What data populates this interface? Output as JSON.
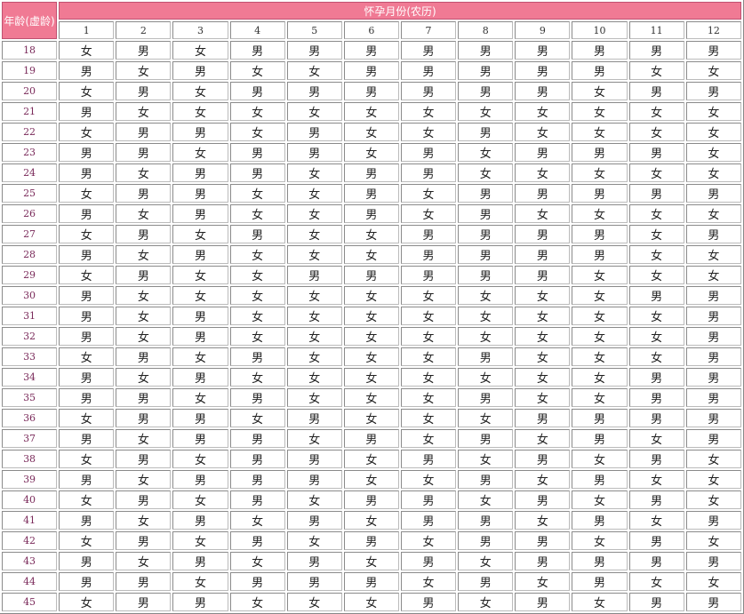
{
  "header": {
    "age_label": "年龄(虚龄)",
    "month_label": "怀孕月份(农历)",
    "months": [
      "1",
      "2",
      "3",
      "4",
      "5",
      "6",
      "7",
      "8",
      "9",
      "10",
      "11",
      "12"
    ]
  },
  "colors": {
    "header_bg": "#f07a94",
    "age_text": "#7a2a5a"
  },
  "rows": [
    {
      "age": "18",
      "cells": [
        "女",
        "男",
        "女",
        "男",
        "男",
        "男",
        "男",
        "男",
        "男",
        "男",
        "男",
        "男"
      ]
    },
    {
      "age": "19",
      "cells": [
        "男",
        "女",
        "男",
        "女",
        "女",
        "男",
        "男",
        "男",
        "男",
        "男",
        "女",
        "女"
      ]
    },
    {
      "age": "20",
      "cells": [
        "女",
        "男",
        "女",
        "男",
        "男",
        "男",
        "男",
        "男",
        "男",
        "女",
        "男",
        "男"
      ]
    },
    {
      "age": "21",
      "cells": [
        "男",
        "女",
        "女",
        "女",
        "女",
        "女",
        "女",
        "女",
        "女",
        "女",
        "女",
        "女"
      ]
    },
    {
      "age": "22",
      "cells": [
        "女",
        "男",
        "男",
        "女",
        "男",
        "女",
        "女",
        "男",
        "女",
        "女",
        "女",
        "女"
      ]
    },
    {
      "age": "23",
      "cells": [
        "男",
        "男",
        "女",
        "男",
        "男",
        "女",
        "男",
        "女",
        "男",
        "男",
        "男",
        "女"
      ]
    },
    {
      "age": "24",
      "cells": [
        "男",
        "女",
        "男",
        "男",
        "女",
        "男",
        "男",
        "女",
        "女",
        "女",
        "女",
        "女"
      ]
    },
    {
      "age": "25",
      "cells": [
        "女",
        "男",
        "男",
        "女",
        "女",
        "男",
        "女",
        "男",
        "男",
        "男",
        "男",
        "男"
      ]
    },
    {
      "age": "26",
      "cells": [
        "男",
        "女",
        "男",
        "女",
        "女",
        "男",
        "女",
        "男",
        "女",
        "女",
        "女",
        "女"
      ]
    },
    {
      "age": "27",
      "cells": [
        "女",
        "男",
        "女",
        "男",
        "女",
        "女",
        "男",
        "男",
        "男",
        "男",
        "女",
        "男"
      ]
    },
    {
      "age": "28",
      "cells": [
        "男",
        "女",
        "男",
        "女",
        "女",
        "女",
        "男",
        "男",
        "男",
        "男",
        "女",
        "女"
      ]
    },
    {
      "age": "29",
      "cells": [
        "女",
        "男",
        "女",
        "女",
        "男",
        "男",
        "男",
        "男",
        "男",
        "女",
        "女",
        "女"
      ]
    },
    {
      "age": "30",
      "cells": [
        "男",
        "女",
        "女",
        "女",
        "女",
        "女",
        "女",
        "女",
        "女",
        "女",
        "男",
        "男"
      ]
    },
    {
      "age": "31",
      "cells": [
        "男",
        "女",
        "男",
        "女",
        "女",
        "女",
        "女",
        "女",
        "女",
        "女",
        "女",
        "男"
      ]
    },
    {
      "age": "32",
      "cells": [
        "男",
        "女",
        "男",
        "女",
        "女",
        "女",
        "女",
        "女",
        "女",
        "女",
        "女",
        "男"
      ]
    },
    {
      "age": "33",
      "cells": [
        "女",
        "男",
        "女",
        "男",
        "女",
        "女",
        "女",
        "男",
        "女",
        "女",
        "女",
        "男"
      ]
    },
    {
      "age": "34",
      "cells": [
        "男",
        "女",
        "男",
        "女",
        "女",
        "女",
        "女",
        "女",
        "女",
        "女",
        "男",
        "男"
      ]
    },
    {
      "age": "35",
      "cells": [
        "男",
        "男",
        "女",
        "男",
        "女",
        "女",
        "女",
        "男",
        "女",
        "女",
        "男",
        "男"
      ]
    },
    {
      "age": "36",
      "cells": [
        "女",
        "男",
        "男",
        "女",
        "男",
        "女",
        "女",
        "女",
        "男",
        "男",
        "男",
        "男"
      ]
    },
    {
      "age": "37",
      "cells": [
        "男",
        "女",
        "男",
        "男",
        "女",
        "男",
        "女",
        "男",
        "女",
        "男",
        "女",
        "男"
      ]
    },
    {
      "age": "38",
      "cells": [
        "女",
        "男",
        "女",
        "男",
        "男",
        "女",
        "男",
        "女",
        "男",
        "女",
        "男",
        "女"
      ]
    },
    {
      "age": "39",
      "cells": [
        "男",
        "女",
        "男",
        "男",
        "男",
        "女",
        "女",
        "男",
        "女",
        "男",
        "女",
        "女"
      ]
    },
    {
      "age": "40",
      "cells": [
        "女",
        "男",
        "女",
        "男",
        "女",
        "男",
        "男",
        "女",
        "男",
        "女",
        "男",
        "女"
      ]
    },
    {
      "age": "41",
      "cells": [
        "男",
        "女",
        "男",
        "女",
        "男",
        "女",
        "男",
        "男",
        "女",
        "男",
        "女",
        "男"
      ]
    },
    {
      "age": "42",
      "cells": [
        "女",
        "男",
        "女",
        "男",
        "女",
        "男",
        "女",
        "男",
        "男",
        "女",
        "男",
        "女"
      ]
    },
    {
      "age": "43",
      "cells": [
        "男",
        "女",
        "男",
        "女",
        "男",
        "女",
        "男",
        "女",
        "男",
        "男",
        "男",
        "男"
      ]
    },
    {
      "age": "44",
      "cells": [
        "男",
        "男",
        "女",
        "男",
        "男",
        "男",
        "女",
        "男",
        "女",
        "男",
        "女",
        "女"
      ]
    },
    {
      "age": "45",
      "cells": [
        "女",
        "男",
        "男",
        "女",
        "女",
        "女",
        "男",
        "女",
        "男",
        "女",
        "男",
        "男"
      ]
    }
  ]
}
